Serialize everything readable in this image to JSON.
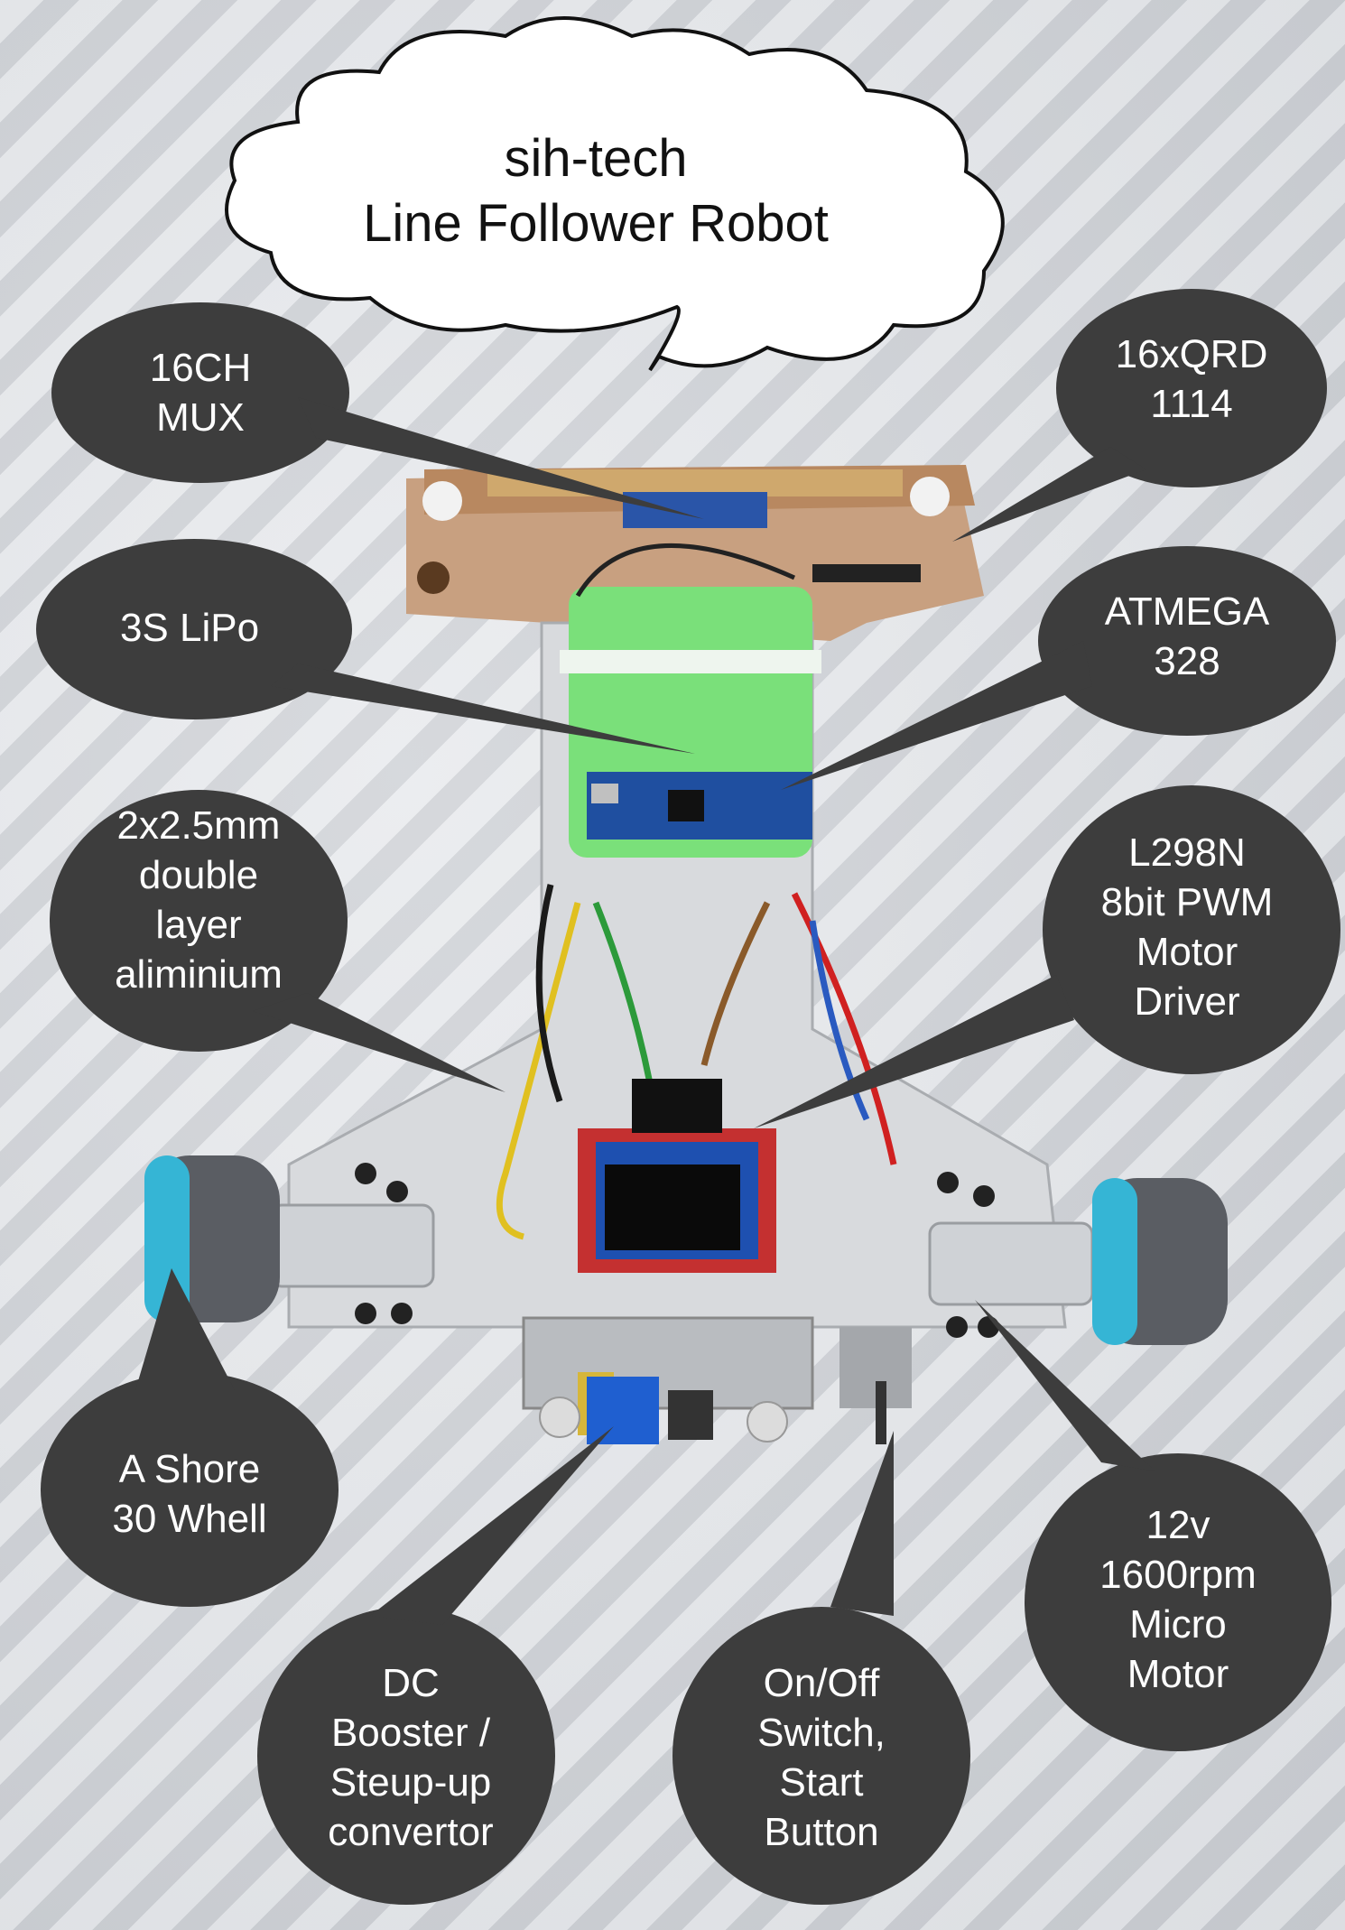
{
  "title": {
    "line1": "sih-tech",
    "line2": "Line Follower Robot"
  },
  "callouts": [
    {
      "id": "mux",
      "text": "16CH\nMUX"
    },
    {
      "id": "qrd",
      "text": "16xQRD\n1114"
    },
    {
      "id": "lipo",
      "text": "3S LiPo"
    },
    {
      "id": "atmega",
      "text": "ATMEGA\n328"
    },
    {
      "id": "chassis",
      "text": "2x2.5mm\ndouble\nlayer\naliminium"
    },
    {
      "id": "driver",
      "text": "L298N\n8bit PWM\nMotor\nDriver"
    },
    {
      "id": "wheel",
      "text": "A Shore\n30 Whell"
    },
    {
      "id": "motor",
      "text": "12v\n1600rpm\nMicro\nMotor"
    },
    {
      "id": "booster",
      "text": "DC\nBooster /\nSteup-up\nconvertor"
    },
    {
      "id": "switch",
      "text": "On/Off\nSwitch,\nStart\nButton"
    }
  ]
}
